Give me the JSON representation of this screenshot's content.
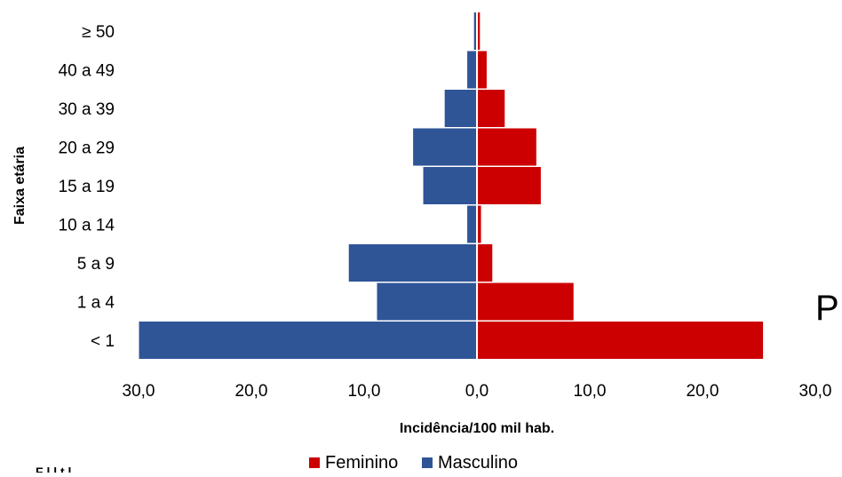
{
  "chart_data": {
    "type": "bar",
    "orientation": "horizontal",
    "layout": "population-pyramid",
    "categories": [
      "< 1",
      "1 a 4",
      "5 a 9",
      "10 a 14",
      "15 a 19",
      "20 a 29",
      "30 a 39",
      "40 a 49",
      "≥ 50"
    ],
    "series": [
      {
        "name": "Feminino",
        "color": "#cc0000",
        "side": "right",
        "values": [
          25.4,
          8.6,
          1.4,
          0.4,
          5.7,
          5.3,
          2.5,
          0.9,
          0.3
        ]
      },
      {
        "name": "Masculino",
        "color": "#2f5597",
        "side": "left",
        "values": [
          30.0,
          8.9,
          11.4,
          0.9,
          4.8,
          5.7,
          2.9,
          0.9,
          0.3
        ]
      }
    ],
    "xlabel": "Incidência/100 mil hab.",
    "ylabel": "Faixa etária",
    "xlim": [
      -30,
      30
    ],
    "xticks": [
      -30,
      -20,
      -10,
      0,
      10,
      20,
      30
    ],
    "xtick_labels": [
      "30,0",
      "20,0",
      "10,0",
      "0,0",
      "10,0",
      "20,0",
      "30,0"
    ],
    "legend_position": "bottom",
    "grid": false
  },
  "stray_text": "P",
  "cutoff_text": "F     l   l      t   l"
}
